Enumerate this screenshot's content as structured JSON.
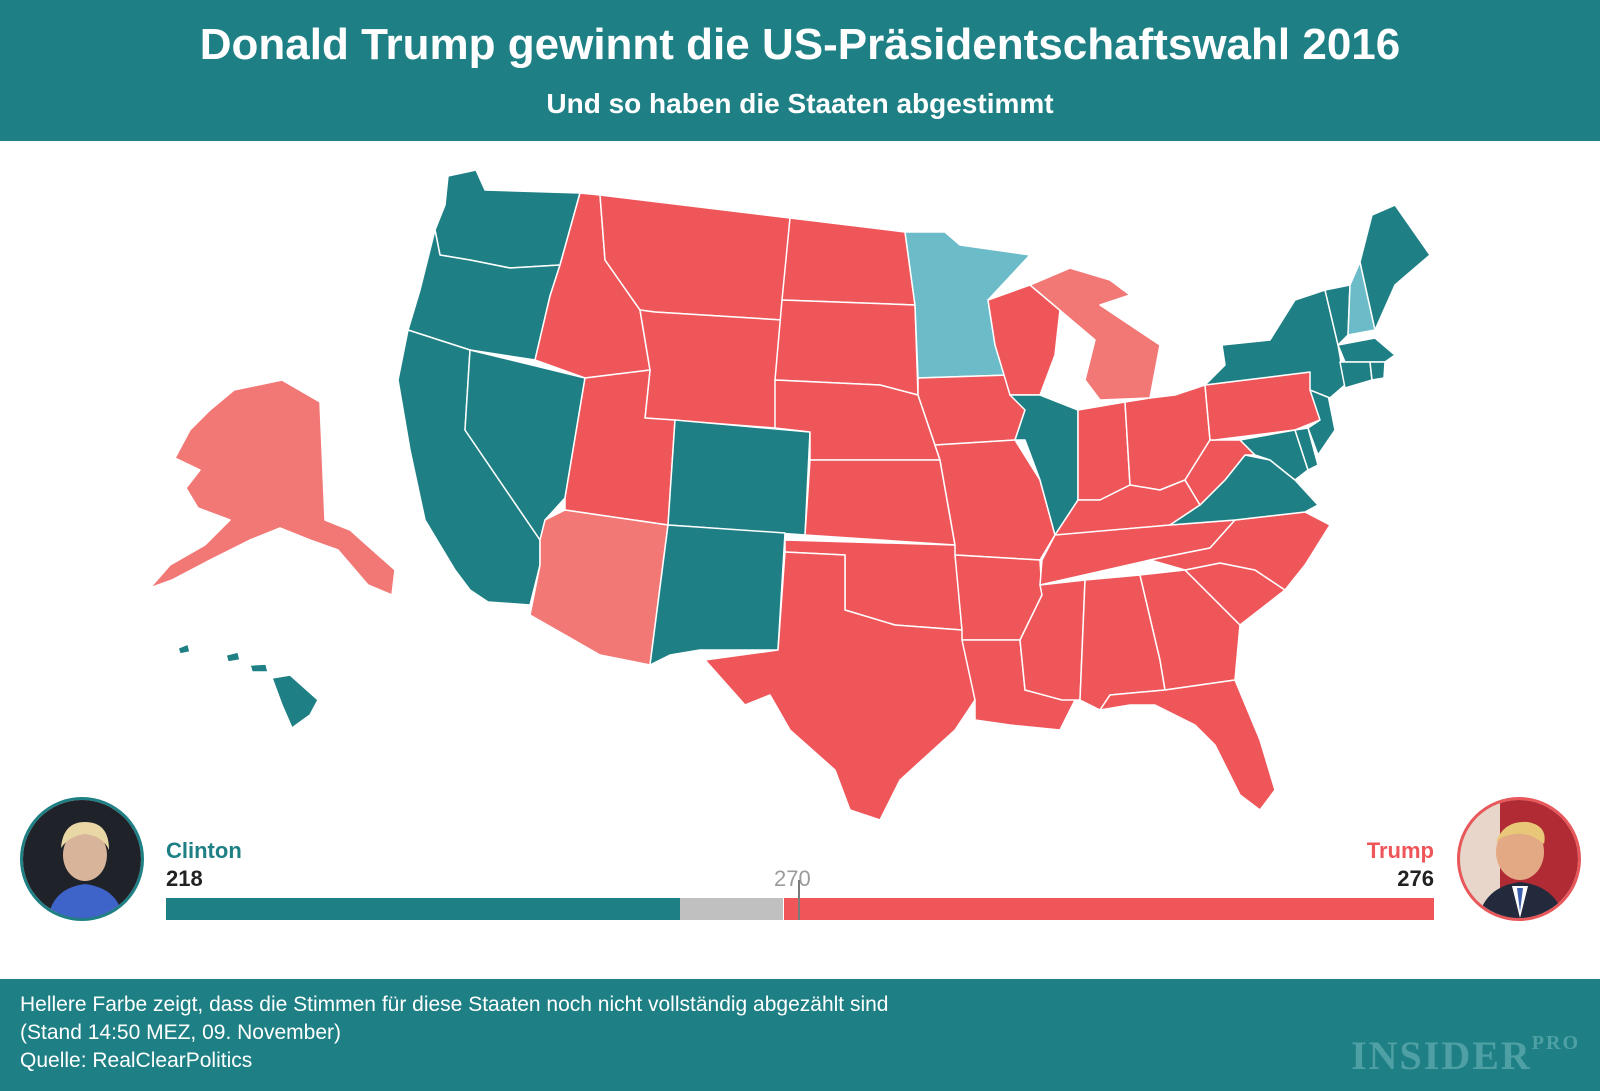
{
  "header": {
    "title": "Donald Trump gewinnt die US-Präsidentschaftswahl 2016",
    "subtitle": "Und so haben die Staaten abgestimmt"
  },
  "colors": {
    "clinton": "#1e8085",
    "clinton_light": "#6bbcc8",
    "trump": "#ef5659",
    "trump_light": "#f27876",
    "undecided": "#c0c0c0"
  },
  "map": {
    "states": [
      {
        "id": "alaska",
        "winner": "trump",
        "final": false
      },
      {
        "id": "hawaii",
        "winner": "clinton",
        "final": true
      },
      {
        "id": "washington",
        "winner": "clinton",
        "final": true
      },
      {
        "id": "oregon",
        "winner": "clinton",
        "final": true
      },
      {
        "id": "california",
        "winner": "clinton",
        "final": true
      },
      {
        "id": "nevada",
        "winner": "clinton",
        "final": true
      },
      {
        "id": "idaho",
        "winner": "trump",
        "final": true
      },
      {
        "id": "montana",
        "winner": "trump",
        "final": true
      },
      {
        "id": "wyoming",
        "winner": "trump",
        "final": true
      },
      {
        "id": "utah",
        "winner": "trump",
        "final": true
      },
      {
        "id": "arizona",
        "winner": "trump",
        "final": false
      },
      {
        "id": "colorado",
        "winner": "clinton",
        "final": true
      },
      {
        "id": "new-mexico",
        "winner": "clinton",
        "final": true
      },
      {
        "id": "north-dakota",
        "winner": "trump",
        "final": true
      },
      {
        "id": "south-dakota",
        "winner": "trump",
        "final": true
      },
      {
        "id": "nebraska",
        "winner": "trump",
        "final": true
      },
      {
        "id": "kansas",
        "winner": "trump",
        "final": true
      },
      {
        "id": "oklahoma",
        "winner": "trump",
        "final": true
      },
      {
        "id": "texas",
        "winner": "trump",
        "final": true
      },
      {
        "id": "minnesota",
        "winner": "clinton",
        "final": false
      },
      {
        "id": "iowa",
        "winner": "trump",
        "final": true
      },
      {
        "id": "missouri",
        "winner": "trump",
        "final": true
      },
      {
        "id": "arkansas",
        "winner": "trump",
        "final": true
      },
      {
        "id": "louisiana",
        "winner": "trump",
        "final": true
      },
      {
        "id": "wisconsin",
        "winner": "trump",
        "final": true
      },
      {
        "id": "illinois",
        "winner": "clinton",
        "final": true
      },
      {
        "id": "michigan",
        "winner": "trump",
        "final": false
      },
      {
        "id": "indiana",
        "winner": "trump",
        "final": true
      },
      {
        "id": "ohio",
        "winner": "trump",
        "final": true
      },
      {
        "id": "kentucky",
        "winner": "trump",
        "final": true
      },
      {
        "id": "tennessee",
        "winner": "trump",
        "final": true
      },
      {
        "id": "mississippi",
        "winner": "trump",
        "final": true
      },
      {
        "id": "alabama",
        "winner": "trump",
        "final": true
      },
      {
        "id": "georgia",
        "winner": "trump",
        "final": true
      },
      {
        "id": "florida",
        "winner": "trump",
        "final": true
      },
      {
        "id": "south-carolina",
        "winner": "trump",
        "final": true
      },
      {
        "id": "north-carolina",
        "winner": "trump",
        "final": true
      },
      {
        "id": "virginia",
        "winner": "clinton",
        "final": true
      },
      {
        "id": "west-virginia",
        "winner": "trump",
        "final": true
      },
      {
        "id": "pennsylvania",
        "winner": "trump",
        "final": true
      },
      {
        "id": "new-york",
        "winner": "clinton",
        "final": true
      },
      {
        "id": "new-jersey",
        "winner": "clinton",
        "final": true
      },
      {
        "id": "maryland",
        "winner": "clinton",
        "final": true
      },
      {
        "id": "delaware",
        "winner": "clinton",
        "final": true
      },
      {
        "id": "vermont",
        "winner": "clinton",
        "final": true
      },
      {
        "id": "new-hampshire",
        "winner": "clinton",
        "final": false
      },
      {
        "id": "maine",
        "winner": "clinton",
        "final": true
      },
      {
        "id": "massachusetts",
        "winner": "clinton",
        "final": true
      },
      {
        "id": "connecticut",
        "winner": "clinton",
        "final": true
      },
      {
        "id": "rhode-island",
        "winner": "clinton",
        "final": true
      }
    ]
  },
  "tally": {
    "clinton": {
      "name": "Clinton",
      "votes": "218",
      "value": 218
    },
    "trump": {
      "name": "Trump",
      "votes": "276",
      "value": 276
    },
    "threshold_label": "270",
    "threshold_value": 270,
    "total": 538
  },
  "footer": {
    "note": "Hellere Farbe zeigt, dass die Stimmen für diese Staaten noch nicht vollständig abgezählt sind",
    "stand": "(Stand 14:50 MEZ, 09. November)",
    "source": "Quelle: RealClearPolitics",
    "brand": "INSIDER",
    "brand_suffix": "PRO"
  }
}
